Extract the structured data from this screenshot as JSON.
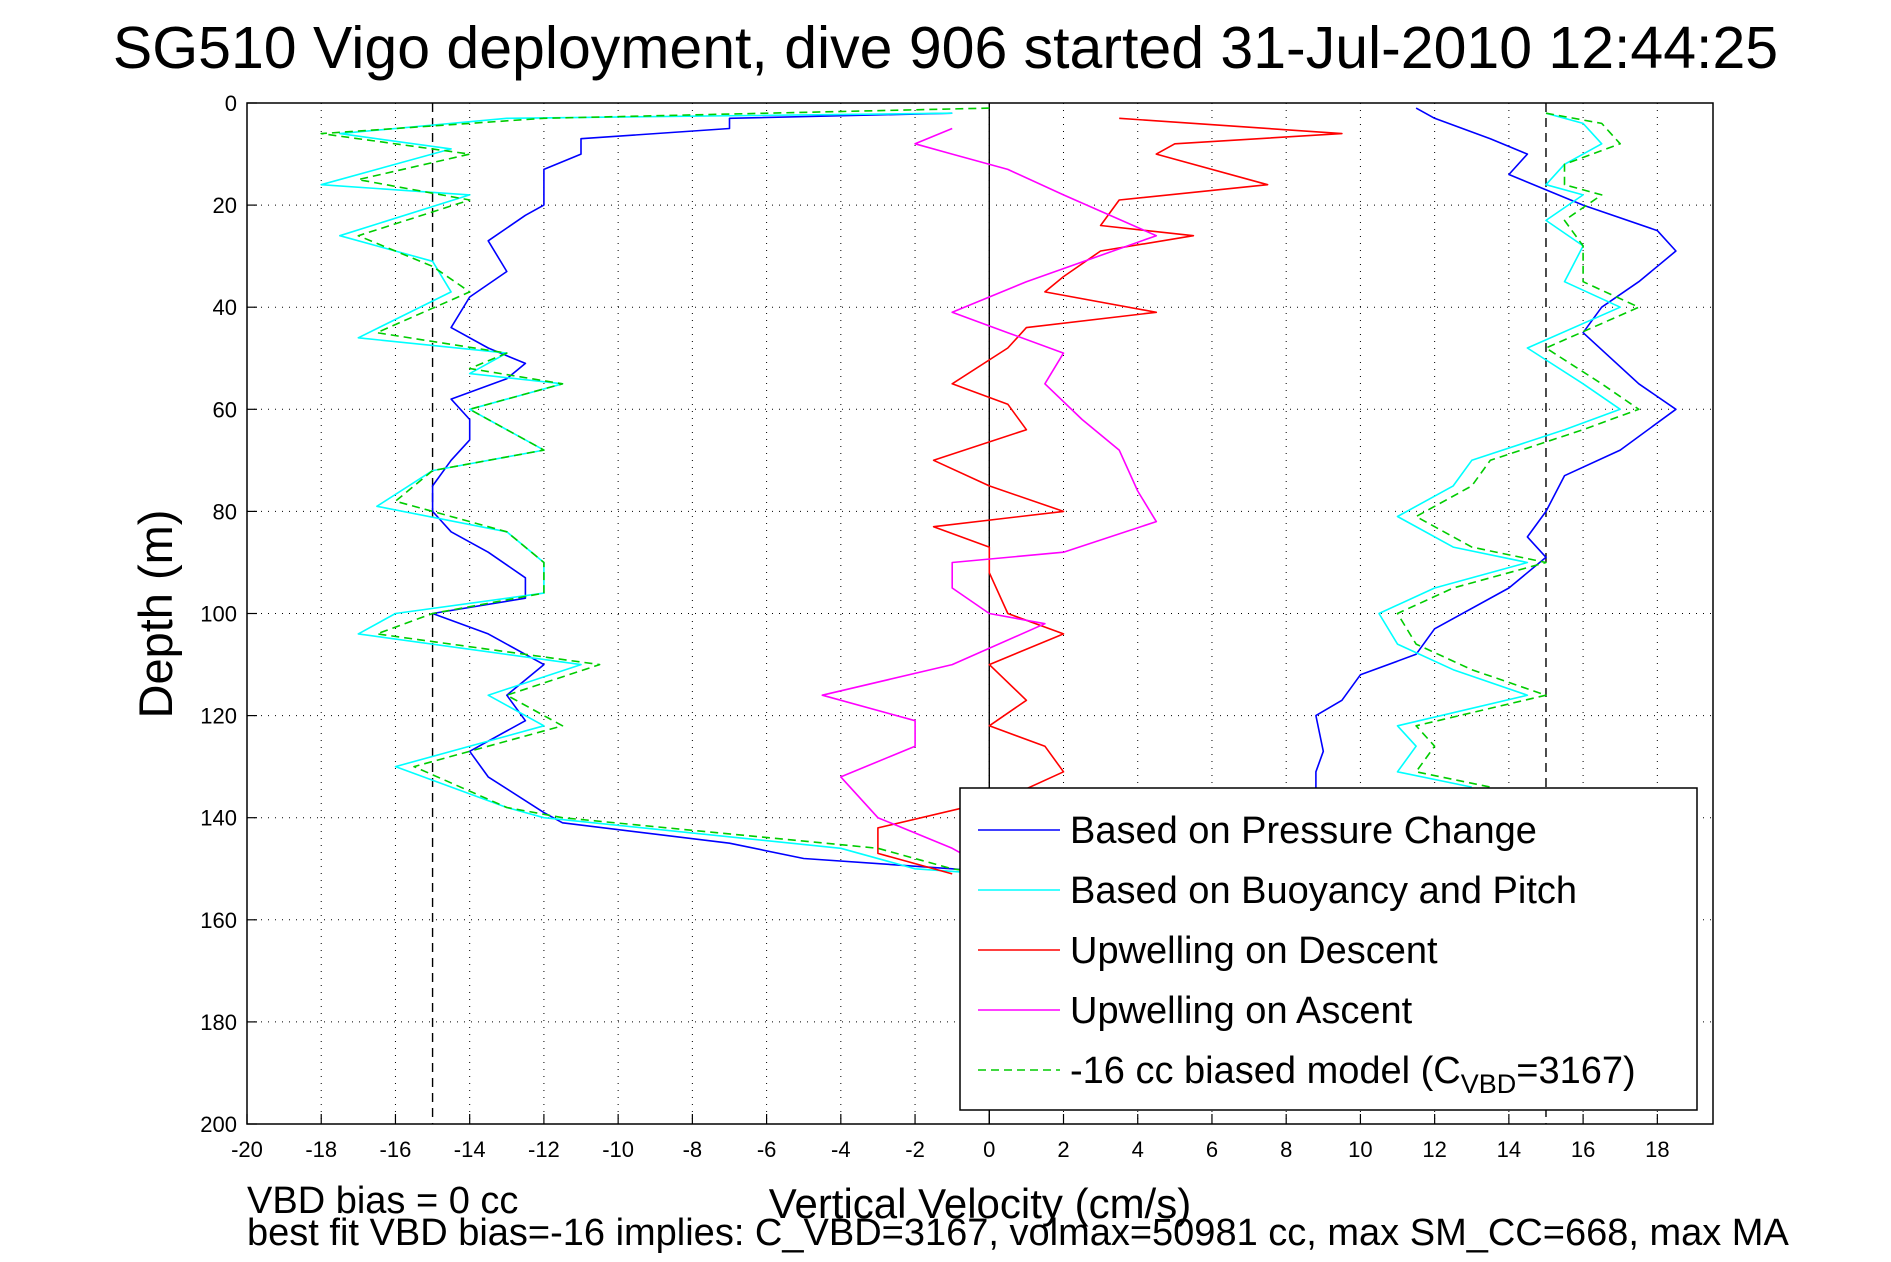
{
  "chart_data": {
    "type": "line",
    "title": "SG510 Vigo deployment, dive 906 started 31-Jul-2010 12:44:25",
    "xlabel": "Vertical Velocity (cm/s)",
    "ylabel": "Depth (m)",
    "xlim": [
      -20,
      19.5
    ],
    "ylim": [
      0,
      200
    ],
    "y_reversed": true,
    "grid": true,
    "x_ticks": [
      "-20",
      "-18",
      "-16",
      "-14",
      "-12",
      "-10",
      "-8",
      "-6",
      "-4",
      "-2",
      "0",
      "2",
      "4",
      "6",
      "8",
      "10",
      "12",
      "14",
      "16",
      "18"
    ],
    "y_ticks": [
      "0",
      "20",
      "40",
      "60",
      "80",
      "100",
      "120",
      "140",
      "160",
      "180",
      "200"
    ],
    "reference_lines": [
      -15,
      0,
      15
    ],
    "legend_position": "bottom-right",
    "legend": [
      {
        "text": "Based on Pressure Change",
        "color": "#0000ff",
        "dash": false
      },
      {
        "text": "Based on Buoyancy and Pitch",
        "color": "#00ffff",
        "dash": false
      },
      {
        "text": "Upwelling on Descent",
        "color": "#ff0000",
        "dash": false
      },
      {
        "text": "Upwelling on Ascent",
        "color": "#ff00ff",
        "dash": false
      },
      {
        "text_pre": "-16 cc biased model (C",
        "text_sub": "VBD",
        "text_post": "=3167)",
        "color": "#00cc00",
        "dash": true
      }
    ],
    "series": [
      {
        "color": "#0000ff",
        "dash": false,
        "points": [
          [
            -1,
            2
          ],
          [
            -7,
            3
          ],
          [
            -7,
            5
          ],
          [
            -11,
            7
          ],
          [
            -11,
            10
          ],
          [
            -12,
            13
          ],
          [
            -12,
            17
          ],
          [
            -12,
            20
          ],
          [
            -12.5,
            22
          ],
          [
            -13.5,
            27
          ],
          [
            -13,
            33
          ],
          [
            -14,
            38
          ],
          [
            -14.5,
            44
          ],
          [
            -13.5,
            48
          ],
          [
            -12.5,
            51
          ],
          [
            -13,
            54
          ],
          [
            -14.5,
            58
          ],
          [
            -14,
            62
          ],
          [
            -14,
            66
          ],
          [
            -14.5,
            70
          ],
          [
            -15,
            75
          ],
          [
            -15,
            80
          ],
          [
            -14.5,
            84
          ],
          [
            -13.5,
            88
          ],
          [
            -12.5,
            93
          ],
          [
            -12.5,
            97
          ],
          [
            -15,
            100
          ],
          [
            -13.5,
            104
          ],
          [
            -12,
            110
          ],
          [
            -13,
            116
          ],
          [
            -12.5,
            121
          ],
          [
            -14,
            127
          ],
          [
            -13.5,
            132
          ],
          [
            -12,
            139
          ],
          [
            -11.5,
            141
          ],
          [
            -7,
            145
          ],
          [
            -5,
            148
          ],
          [
            -1,
            150
          ],
          [
            0.5,
            151
          ]
        ]
      },
      {
        "color": "#00ffff",
        "dash": false,
        "points": [
          [
            -1,
            2
          ],
          [
            -13,
            3
          ],
          [
            -17.5,
            6
          ],
          [
            -14.5,
            9
          ],
          [
            -18,
            16
          ],
          [
            -14,
            18
          ],
          [
            -17.5,
            26
          ],
          [
            -15,
            31
          ],
          [
            -14.5,
            37
          ],
          [
            -17,
            46
          ],
          [
            -13,
            49
          ],
          [
            -14,
            53
          ],
          [
            -11.5,
            55
          ],
          [
            -14,
            60
          ],
          [
            -12,
            68
          ],
          [
            -15,
            72
          ],
          [
            -16.5,
            79
          ],
          [
            -13,
            84
          ],
          [
            -12,
            90
          ],
          [
            -12,
            96
          ],
          [
            -16,
            100
          ],
          [
            -17,
            104
          ],
          [
            -11,
            110
          ],
          [
            -13.5,
            116
          ],
          [
            -12,
            122
          ],
          [
            -16,
            130
          ],
          [
            -13,
            138
          ],
          [
            -12,
            140
          ],
          [
            -4,
            146
          ],
          [
            -2,
            150
          ],
          [
            0,
            151
          ]
        ]
      },
      {
        "color": "#ff0000",
        "dash": false,
        "points": [
          [
            3.5,
            3
          ],
          [
            9.5,
            6
          ],
          [
            5,
            8
          ],
          [
            4.5,
            10
          ],
          [
            7.5,
            16
          ],
          [
            3.5,
            19
          ],
          [
            3,
            24
          ],
          [
            5.5,
            26
          ],
          [
            3,
            29
          ],
          [
            2,
            34
          ],
          [
            1.5,
            37
          ],
          [
            4.5,
            41
          ],
          [
            1,
            44
          ],
          [
            0.5,
            48
          ],
          [
            -1,
            55
          ],
          [
            0.5,
            59
          ],
          [
            1,
            64
          ],
          [
            -1.5,
            70
          ],
          [
            0,
            75
          ],
          [
            2,
            80
          ],
          [
            -1.5,
            83
          ],
          [
            0,
            87
          ],
          [
            0,
            92
          ],
          [
            0.5,
            100
          ],
          [
            2,
            104
          ],
          [
            0,
            110
          ],
          [
            1,
            117
          ],
          [
            0,
            122
          ],
          [
            1.5,
            126
          ],
          [
            2,
            131
          ],
          [
            0.5,
            136
          ],
          [
            -3,
            142
          ],
          [
            -3,
            147
          ],
          [
            -1,
            151
          ]
        ]
      },
      {
        "color": "#ff00ff",
        "dash": false,
        "points": [
          [
            -1,
            5
          ],
          [
            -2,
            8
          ],
          [
            -1,
            10
          ],
          [
            0.5,
            13
          ],
          [
            2,
            18
          ],
          [
            4.5,
            26
          ],
          [
            1,
            35
          ],
          [
            -1,
            41
          ],
          [
            0.5,
            45
          ],
          [
            2,
            49
          ],
          [
            1.5,
            55
          ],
          [
            2.5,
            62
          ],
          [
            3.5,
            68
          ],
          [
            4,
            76
          ],
          [
            4.5,
            82
          ],
          [
            2,
            88
          ],
          [
            -1,
            90
          ],
          [
            -1,
            95
          ],
          [
            0,
            100
          ],
          [
            1.5,
            102
          ],
          [
            -1,
            110
          ],
          [
            -4.5,
            116
          ],
          [
            -2,
            121
          ],
          [
            -2,
            126
          ],
          [
            -4,
            132
          ],
          [
            -3,
            140
          ],
          [
            -1,
            146
          ],
          [
            0,
            150
          ]
        ]
      },
      {
        "color": "#00cc00",
        "dash": true,
        "points": [
          [
            0,
            1
          ],
          [
            -12,
            3
          ],
          [
            -18,
            6
          ],
          [
            -14,
            10
          ],
          [
            -17,
            15
          ],
          [
            -14,
            19
          ],
          [
            -17,
            26
          ],
          [
            -15,
            32
          ],
          [
            -14,
            37
          ],
          [
            -16.5,
            45
          ],
          [
            -13,
            49
          ],
          [
            -14,
            52
          ],
          [
            -11.5,
            55
          ],
          [
            -14,
            60
          ],
          [
            -12,
            68
          ],
          [
            -15,
            72
          ],
          [
            -16,
            78
          ],
          [
            -13,
            84
          ],
          [
            -12,
            90
          ],
          [
            -12,
            96
          ],
          [
            -15,
            100
          ],
          [
            -16.5,
            104
          ],
          [
            -10.5,
            110
          ],
          [
            -13,
            116
          ],
          [
            -11.5,
            122
          ],
          [
            -15.5,
            130
          ],
          [
            -13,
            138
          ],
          [
            -11.5,
            140
          ],
          [
            -3,
            146
          ],
          [
            -1,
            150
          ],
          [
            0,
            151
          ]
        ]
      },
      {
        "color": "#0000ff",
        "dash": false,
        "points": [
          [
            11.5,
            1
          ],
          [
            12,
            3
          ],
          [
            13.5,
            7
          ],
          [
            14.5,
            10
          ],
          [
            14,
            14
          ],
          [
            16,
            20
          ],
          [
            18,
            25
          ],
          [
            18.5,
            29
          ],
          [
            17.5,
            35
          ],
          [
            16.5,
            40
          ],
          [
            16,
            45
          ],
          [
            17.5,
            55
          ],
          [
            18.5,
            60
          ],
          [
            17,
            68
          ],
          [
            15.5,
            73
          ],
          [
            15,
            80
          ],
          [
            14.5,
            85
          ],
          [
            15,
            89
          ],
          [
            14,
            95
          ],
          [
            12,
            103
          ],
          [
            11.5,
            108
          ],
          [
            10,
            112
          ],
          [
            9.5,
            117
          ],
          [
            8.8,
            120
          ],
          [
            9,
            127
          ],
          [
            8.8,
            131
          ],
          [
            8.8,
            135
          ]
        ]
      },
      {
        "color": "#00ffff",
        "dash": false,
        "points": [
          [
            15,
            2
          ],
          [
            16,
            4
          ],
          [
            16.5,
            8
          ],
          [
            15.5,
            12
          ],
          [
            15,
            16
          ],
          [
            16,
            18
          ],
          [
            15,
            23
          ],
          [
            16,
            28
          ],
          [
            15.5,
            35
          ],
          [
            17,
            40
          ],
          [
            14.5,
            48
          ],
          [
            16,
            55
          ],
          [
            17,
            60
          ],
          [
            15.5,
            64
          ],
          [
            13,
            70
          ],
          [
            12.5,
            75
          ],
          [
            11,
            81
          ],
          [
            12.5,
            87
          ],
          [
            14.5,
            90
          ],
          [
            12,
            95
          ],
          [
            10.5,
            100
          ],
          [
            11,
            106
          ],
          [
            12.5,
            111
          ],
          [
            14.5,
            116
          ],
          [
            11,
            122
          ],
          [
            11.5,
            126
          ],
          [
            11,
            131
          ],
          [
            13,
            134
          ]
        ]
      },
      {
        "color": "#00cc00",
        "dash": true,
        "points": [
          [
            15,
            2
          ],
          [
            16.5,
            4
          ],
          [
            17,
            8
          ],
          [
            15.5,
            12
          ],
          [
            15.5,
            16
          ],
          [
            16.5,
            18
          ],
          [
            15.5,
            23
          ],
          [
            16,
            28
          ],
          [
            16,
            35
          ],
          [
            17.5,
            40
          ],
          [
            15,
            48
          ],
          [
            16.5,
            55
          ],
          [
            17.5,
            60
          ],
          [
            16,
            64
          ],
          [
            13.5,
            70
          ],
          [
            13,
            75
          ],
          [
            11.5,
            81
          ],
          [
            13,
            87
          ],
          [
            15,
            90
          ],
          [
            12.5,
            95
          ],
          [
            11,
            100
          ],
          [
            11.5,
            106
          ],
          [
            13,
            111
          ],
          [
            15,
            116
          ],
          [
            11.5,
            122
          ],
          [
            12,
            126
          ],
          [
            11.5,
            131
          ],
          [
            13.5,
            134
          ]
        ]
      }
    ]
  },
  "footer": {
    "line1": "VBD bias = 0 cc",
    "line2": "best fit VBD bias=-16 implies: C_VBD=3167, volmax=50981 cc, max SM_CC=668, max MA"
  }
}
